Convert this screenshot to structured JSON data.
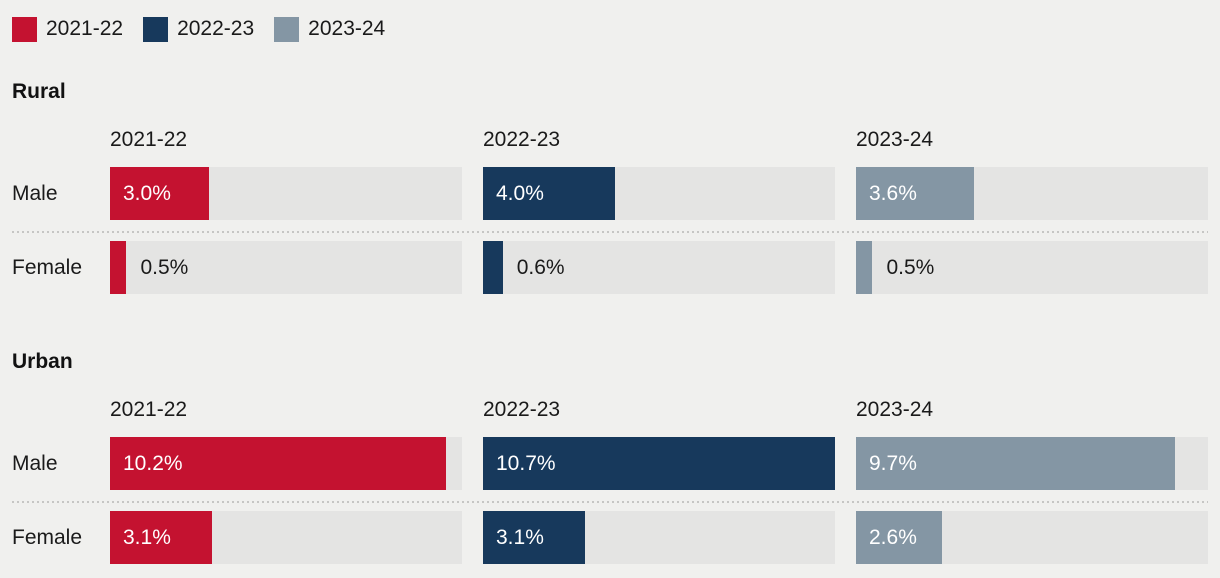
{
  "legend": {
    "items": [
      {
        "label": "2021-22",
        "color": "#c41230"
      },
      {
        "label": "2022-23",
        "color": "#17395c"
      },
      {
        "label": "2023-24",
        "color": "#8496a4"
      }
    ]
  },
  "colors": {
    "background": "#f0f0ee",
    "bar_track": "#e4e4e3",
    "text": "#1a1a1a",
    "bar_label_inside": "#ffffff",
    "separator_dots": "#c6c6c4",
    "series": [
      "#c41230",
      "#17395c",
      "#8496a4"
    ]
  },
  "chart_data": {
    "type": "bar",
    "orientation": "horizontal",
    "unit": "%",
    "xmax": 10.7,
    "grid": false,
    "legend_position": "top-left",
    "series": [
      "2021-22",
      "2022-23",
      "2023-24"
    ],
    "groups": [
      {
        "name": "Rural",
        "rows": [
          {
            "label": "Male",
            "values": [
              3.0,
              4.0,
              3.6
            ],
            "display": [
              "3.0%",
              "4.0%",
              "3.6%"
            ]
          },
          {
            "label": "Female",
            "values": [
              0.5,
              0.6,
              0.5
            ],
            "display": [
              "0.5%",
              "0.6%",
              "0.5%"
            ]
          }
        ]
      },
      {
        "name": "Urban",
        "rows": [
          {
            "label": "Male",
            "values": [
              10.2,
              10.7,
              9.7
            ],
            "display": [
              "10.2%",
              "10.7%",
              "9.7%"
            ]
          },
          {
            "label": "Female",
            "values": [
              3.1,
              3.1,
              2.6
            ],
            "display": [
              "3.1%",
              "3.1%",
              "2.6%"
            ]
          }
        ]
      }
    ]
  }
}
